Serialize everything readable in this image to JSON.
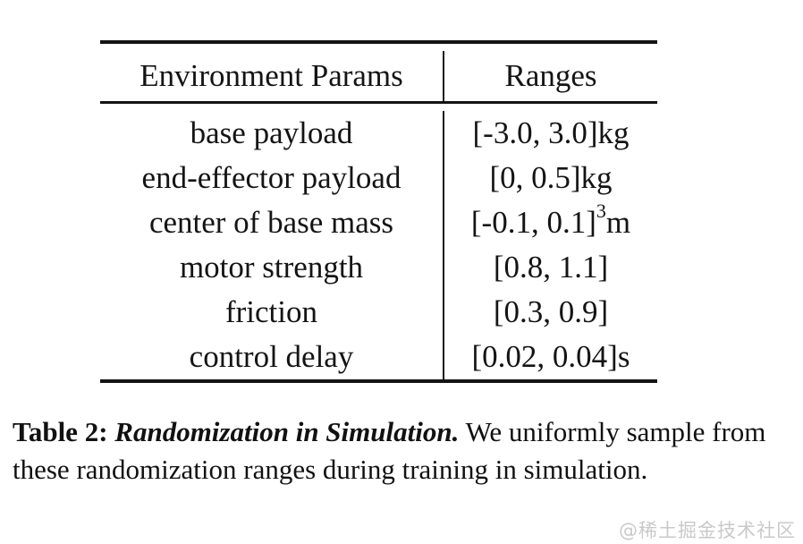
{
  "table": {
    "header": {
      "param": "Environment Params",
      "ranges": "Ranges"
    },
    "rows": [
      {
        "param": "base payload",
        "range": "[-3.0, 3.0]kg",
        "sup": "",
        "post": ""
      },
      {
        "param": "end-effector payload",
        "range": "[0, 0.5]kg",
        "sup": "",
        "post": ""
      },
      {
        "param": "center of base mass",
        "range": "[-0.1, 0.1]",
        "sup": "3",
        "post": "m"
      },
      {
        "param": "motor strength",
        "range": "[0.8, 1.1]",
        "sup": "",
        "post": ""
      },
      {
        "param": "friction",
        "range": "[0.3, 0.9]",
        "sup": "",
        "post": ""
      },
      {
        "param": "control delay",
        "range": "[0.02, 0.04]s",
        "sup": "",
        "post": ""
      }
    ]
  },
  "caption": {
    "label": "Table 2:",
    "title": "Randomization in Simulation.",
    "text": "We uniformly sample from these randomization ranges during training in simulation."
  },
  "watermark": "@稀土掘金技术社区",
  "colors": {
    "text": "#141414",
    "rule": "#141414",
    "watermark": "#c9c9c9",
    "background": "#ffffff"
  }
}
